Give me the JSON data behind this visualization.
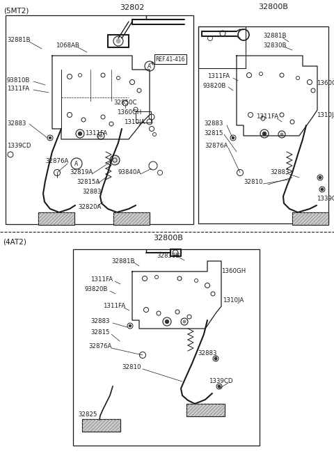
{
  "bg_color": "#ffffff",
  "lc": "#1a1a1a",
  "fig_w": 4.8,
  "fig_h": 6.55,
  "dpi": 100,
  "title_5mt2": "(5MT2)",
  "title_4at2": "(4AT2)",
  "lbl_32802": "32802",
  "lbl_32800B_tr": "32800B",
  "lbl_32800B_bot": "32800B"
}
